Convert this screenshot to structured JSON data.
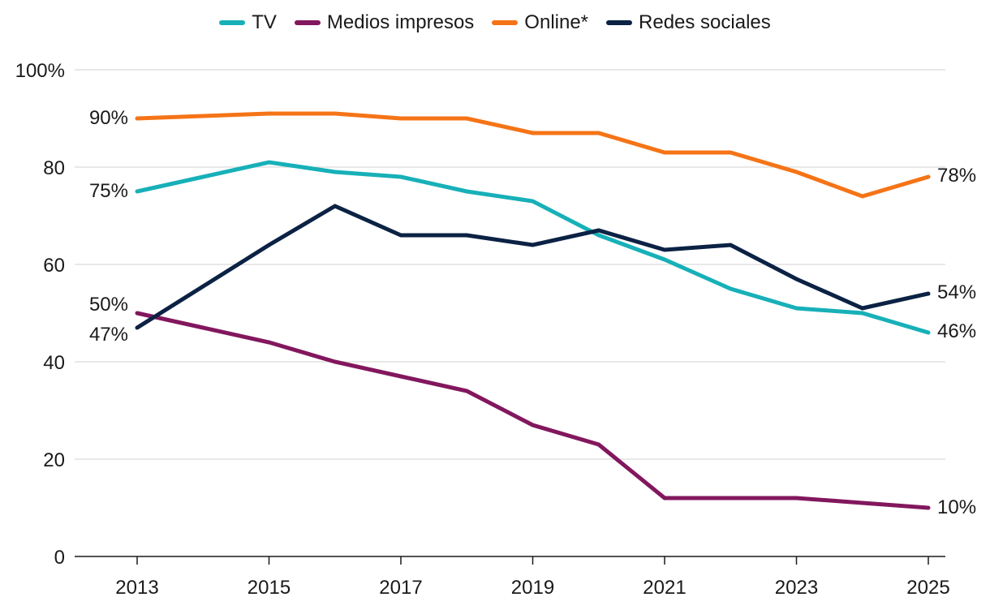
{
  "chart_data": {
    "type": "line",
    "title": "",
    "xlabel": "",
    "ylabel": "",
    "x": [
      2013,
      2014,
      2015,
      2016,
      2017,
      2018,
      2019,
      2020,
      2021,
      2022,
      2023,
      2024,
      2025
    ],
    "x_tick_labels": [
      "2013",
      "2015",
      "2017",
      "2019",
      "2021",
      "2023",
      "2025"
    ],
    "ylim": [
      0,
      100
    ],
    "y_tick_labels": [
      "0",
      "20",
      "40",
      "60",
      "80",
      "100%"
    ],
    "y_ticks": [
      0,
      20,
      40,
      60,
      80,
      100
    ],
    "grid": true,
    "legend_position": "top-center",
    "series": [
      {
        "name": "TV",
        "color": "#17b0b8",
        "values": [
          75,
          78,
          81,
          79,
          78,
          75,
          73,
          66,
          61,
          55,
          51,
          50,
          46
        ],
        "start_label": "75%",
        "end_label": "46%"
      },
      {
        "name": "Medios impresos",
        "color": "#82175e",
        "values": [
          50,
          47,
          44,
          40,
          37,
          34,
          27,
          23,
          12,
          12,
          12,
          11,
          10
        ],
        "start_label": "50%",
        "end_label": "10%"
      },
      {
        "name": "Online*",
        "color": "#f57417",
        "values": [
          90,
          90.5,
          91,
          91,
          90,
          90,
          87,
          87,
          83,
          83,
          79,
          74,
          78
        ],
        "start_label": "90%",
        "end_label": "78%"
      },
      {
        "name": "Redes sociales",
        "color": "#0b2244",
        "values": [
          47,
          55.5,
          64,
          72,
          66,
          66,
          64,
          67,
          63,
          64,
          57,
          51,
          54
        ],
        "start_label": "47%",
        "end_label": "54%"
      }
    ]
  }
}
